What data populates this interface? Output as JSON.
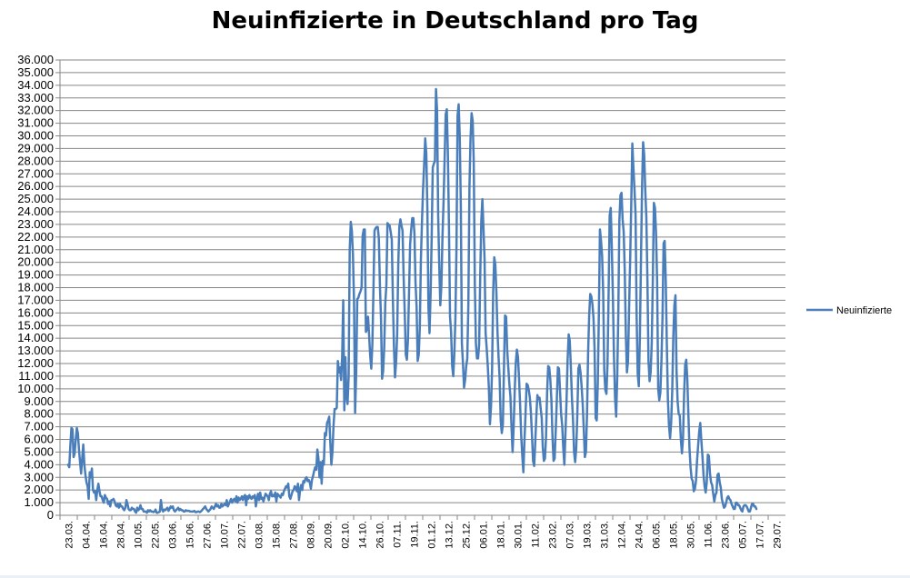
{
  "chart_data": {
    "type": "line",
    "title": "Neuinfizierte in Deutschland pro Tag",
    "xlabel": "",
    "ylabel": "",
    "ylim": [
      0,
      36000
    ],
    "y_tick_labels": [
      "0",
      "1.000",
      "2.000",
      "3.000",
      "4.000",
      "5.000",
      "6.000",
      "7.000",
      "8.000",
      "9.000",
      "10.000",
      "11.000",
      "12.000",
      "13.000",
      "14.000",
      "15.000",
      "16.000",
      "17.000",
      "18.000",
      "19.000",
      "20.000",
      "21.000",
      "22.000",
      "23.000",
      "24.000",
      "25.000",
      "26.000",
      "27.000",
      "28.000",
      "29.000",
      "30.000",
      "31.000",
      "32.000",
      "33.000",
      "34.000",
      "35.000",
      "36.000"
    ],
    "x_tick_labels": [
      "23.03.",
      "04.04.",
      "16.04.",
      "28.04.",
      "10.05.",
      "22.05.",
      "03.06.",
      "15.06.",
      "27.06.",
      "10.07.",
      "22.07.",
      "03.08.",
      "15.08.",
      "27.08.",
      "08.09.",
      "20.09.",
      "02.10.",
      "14.10.",
      "26.10.",
      "07.11.",
      "19.11.",
      "01.12.",
      "13.12.",
      "25.12.",
      "06.01.",
      "18.01.",
      "30.01.",
      "11.02.",
      "23.02.",
      "07.03.",
      "19.03.",
      "31.03.",
      "12.04.",
      "24.04.",
      "06.05.",
      "18.05.",
      "30.05.",
      "11.06.",
      "23.06.",
      "05.07.",
      "17.07.",
      "29.07."
    ],
    "grid": true,
    "legend_position": "right",
    "series": [
      {
        "name": "Neuinfizierte",
        "color": "#4a7ebb",
        "values": [
          4000,
          3800,
          5500,
          6900,
          6800,
          4600,
          4900,
          6000,
          6900,
          6500,
          5200,
          4200,
          3300,
          4500,
          5600,
          4000,
          3200,
          2600,
          2300,
          1300,
          3400,
          3000,
          3700,
          2000,
          1800,
          1900,
          1200,
          2000,
          2500,
          1900,
          1500,
          1500,
          1200,
          1000,
          1600,
          1400,
          1300,
          900,
          1100,
          700,
          1200,
          1200,
          1300,
          1100,
          800,
          700,
          900,
          600,
          900,
          700,
          700,
          500,
          400,
          600,
          1200,
          900,
          500,
          400,
          400,
          600,
          500,
          500,
          300,
          200,
          600,
          400,
          500,
          800,
          500,
          500,
          300,
          300,
          300,
          200,
          400,
          300,
          400,
          300,
          300,
          250,
          300,
          450,
          200,
          200,
          250,
          300,
          1200,
          500,
          300,
          450,
          400,
          500,
          600,
          350,
          500,
          700,
          600,
          700,
          400,
          300,
          400,
          500,
          600,
          400,
          500,
          400,
          400,
          300,
          300,
          400,
          350,
          350,
          350,
          300,
          300,
          300,
          300,
          350,
          250,
          250,
          300,
          300,
          250,
          300,
          400,
          500,
          600,
          700,
          500,
          400,
          300,
          400,
          500,
          700,
          600,
          500,
          700,
          900,
          700,
          800,
          600,
          600,
          900,
          700,
          800,
          900,
          800,
          1200,
          700,
          900,
          1100,
          1300,
          1000,
          1200,
          1300,
          1100,
          1500,
          1000,
          1400,
          1200,
          1300,
          1500,
          1200,
          1500,
          1600,
          800,
          1500,
          1300,
          1600,
          1400,
          1300,
          1500,
          1400,
          1600,
          700,
          1300,
          1700,
          1200,
          1800,
          1300,
          1400,
          1100,
          1400,
          1700,
          1600,
          1500,
          1200,
          1700,
          1900,
          1500,
          1600,
          1500,
          1800,
          1100,
          1700,
          1600,
          1500,
          1400,
          1700,
          1600,
          1900,
          2100,
          2300,
          2200,
          2500,
          1500,
          1300,
          1600,
          1900,
          2000,
          2300,
          2200,
          1900,
          2500,
          1200,
          2000,
          2400,
          2000,
          2700,
          2600,
          2900,
          3000,
          2700,
          2800,
          2600,
          2100,
          2800,
          3100,
          3500,
          3800,
          3600,
          5200,
          4500,
          3000,
          4200,
          2500,
          4300,
          4000,
          6500,
          6300,
          7300,
          7500,
          7800,
          5800,
          4000,
          5000,
          7100,
          8400,
          8400,
          8500,
          12200,
          11300,
          11700,
          10700,
          12500,
          17000,
          8300,
          12500,
          9400,
          8800,
          11000,
          21000,
          23200,
          22500,
          20600,
          16900,
          8100,
          11200,
          17100,
          17200,
          17500,
          17700,
          18000,
          22100,
          22600,
          22600,
          14500,
          14700,
          15700,
          14200,
          12600,
          11600,
          13500,
          17800,
          22500,
          22700,
          22800,
          22800,
          21900,
          18200,
          15600,
          10800,
          11400,
          13300,
          16800,
          18200,
          23100,
          23000,
          22900,
          22400,
          21800,
          17200,
          13400,
          10900,
          12100,
          14300,
          19800,
          22800,
          23400,
          22900,
          22500,
          18800,
          16100,
          12700,
          12300,
          13900,
          17600,
          21400,
          22600,
          23500,
          23500,
          22300,
          18400,
          16500,
          12200,
          12700,
          14900,
          20200,
          23200,
          25800,
          27700,
          29800,
          28600,
          24200,
          16400,
          14400,
          17500,
          22000,
          27500,
          27800,
          28000,
          33700,
          32000,
          23700,
          19800,
          16600,
          18200,
          22000,
          24800,
          28200,
          31700,
          32100,
          28600,
          22900,
          15700,
          14500,
          11800,
          11000,
          12800,
          15600,
          21300,
          31600,
          32500,
          30000,
          24600,
          13600,
          12000,
          10100,
          10700,
          11800,
          12400,
          16700,
          25900,
          29800,
          31800,
          31200,
          27900,
          18300,
          13600,
          12400,
          12400,
          13500,
          18900,
          23300,
          25000,
          22700,
          20300,
          14400,
          13200,
          11800,
          10100,
          7200,
          8600,
          11600,
          17600,
          20400,
          19800,
          17600,
          14500,
          12500,
          10800,
          7500,
          6500,
          7200,
          11600,
          15800,
          15700,
          13100,
          11700,
          10400,
          9400,
          7000,
          5000,
          7000,
          9900,
          12100,
          13100,
          12500,
          10800,
          8700,
          6300,
          4700,
          3400,
          5900,
          8000,
          10400,
          10300,
          9900,
          9300,
          8100,
          6300,
          4300,
          3900,
          5700,
          7800,
          9500,
          9200,
          9300,
          8500,
          7700,
          5400,
          4300,
          4500,
          6200,
          9700,
          11800,
          11700,
          10700,
          9100,
          6200,
          4300,
          4500,
          6700,
          9100,
          11700,
          11600,
          9800,
          8000,
          7100,
          5300,
          4000,
          6500,
          9000,
          12300,
          14300,
          13800,
          11800,
          9300,
          7600,
          5000,
          4200,
          5300,
          7900,
          11600,
          11900,
          11300,
          10200,
          8800,
          6800,
          4600,
          5000,
          8000,
          12800,
          15800,
          17500,
          17300,
          16700,
          15600,
          13200,
          7700,
          7500,
          10500,
          16000,
          22600,
          21700,
          20500,
          17600,
          11400,
          9900,
          9600,
          12000,
          17500,
          23700,
          24300,
          21100,
          17300,
          12500,
          9300,
          7800,
          10900,
          15900,
          23300,
          25300,
          25500,
          23400,
          22400,
          19300,
          14300,
          11300,
          12200,
          16300,
          20200,
          24500,
          29400,
          27500,
          25800,
          23800,
          15700,
          11200,
          10200,
          14100,
          20000,
          25800,
          29500,
          28500,
          25700,
          23600,
          18600,
          12200,
          10600,
          11300,
          13600,
          18500,
          24700,
          24300,
          22300,
          18500,
          10000,
          9100,
          9700,
          12200,
          15700,
          21500,
          21700,
          18500,
          13500,
          9100,
          7100,
          6100,
          7300,
          9800,
          14100,
          16600,
          17400,
          11400,
          9000,
          8000,
          7900,
          6000,
          4900,
          6100,
          9500,
          11900,
          12300,
          10700,
          7900,
          5300,
          3800,
          2900,
          2700,
          1900,
          2100,
          2700,
          4300,
          5500,
          6600,
          7300,
          5900,
          4700,
          3200,
          2300,
          1800,
          2600,
          4800,
          4700,
          3300,
          2600,
          2400,
          1700,
          1100,
          1600,
          1800,
          3200,
          3300,
          2600,
          2200,
          1300,
          900,
          600,
          700,
          1000,
          1400,
          1500,
          1300,
          1200,
          900,
          700,
          500,
          500,
          1000,
          1000,
          800,
          800,
          600,
          400,
          300,
          700,
          800,
          800,
          700,
          500,
          300,
          300,
          600,
          900,
          900,
          700,
          700,
          500
        ]
      }
    ]
  }
}
